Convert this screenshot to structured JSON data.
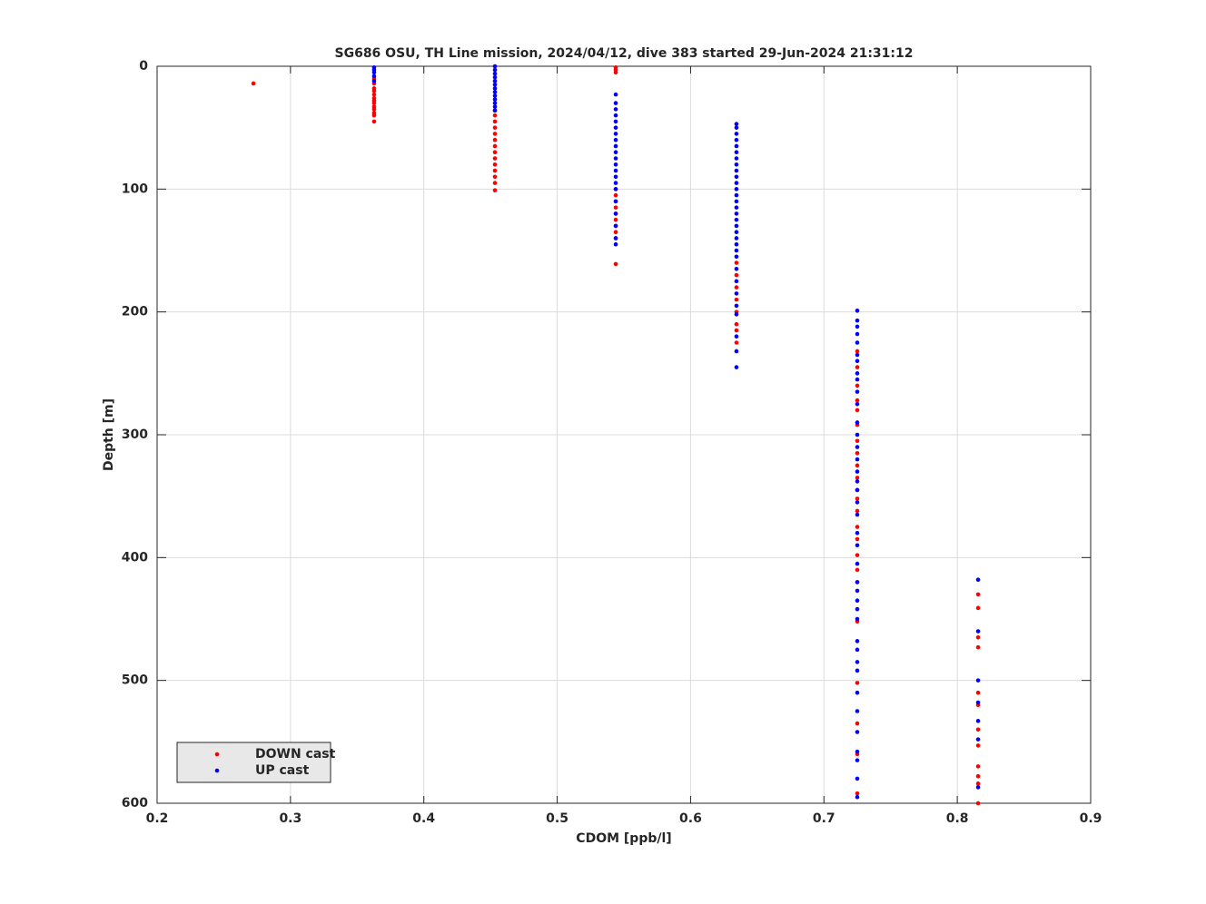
{
  "chart_data": {
    "type": "scatter",
    "title": "SG686 OSU, TH Line mission, 2024/04/12, dive 383 started 29-Jun-2024 21:31:12",
    "x_label": "CDOM [ppb/l]",
    "y_label": "Depth [m]",
    "xlim": [
      0.2,
      0.9
    ],
    "xticks": [
      0.2,
      0.3,
      0.4,
      0.5,
      0.6,
      0.7,
      0.8,
      0.9
    ],
    "ylim": [
      0,
      600
    ],
    "yticks": [
      0,
      100,
      200,
      300,
      400,
      500,
      600
    ],
    "y_reversed": true,
    "grid": true,
    "legend": "lower left",
    "series": [
      {
        "name": "DOWN cast",
        "color": "#ff0000",
        "x": [
          0.2722,
          0.3627,
          0.3627,
          0.3627,
          0.3627,
          0.3627,
          0.3627,
          0.3627,
          0.3627,
          0.3627,
          0.3627,
          0.3627,
          0.3627,
          0.3627,
          0.4533,
          0.4533,
          0.4533,
          0.4533,
          0.4533,
          0.4533,
          0.4533,
          0.4533,
          0.4533,
          0.4533,
          0.4533,
          0.4533,
          0.4533,
          0.4533,
          0.5439,
          0.5439,
          0.5439,
          0.5439,
          0.5439,
          0.5439,
          0.5439,
          0.5439,
          0.5439,
          0.5439,
          0.5439,
          0.5439,
          0.5439,
          0.6344,
          0.6344,
          0.6344,
          0.6344,
          0.6344,
          0.6344,
          0.6344,
          0.6344,
          0.725,
          0.725,
          0.725,
          0.725,
          0.725,
          0.725,
          0.725,
          0.725,
          0.725,
          0.725,
          0.725,
          0.725,
          0.725,
          0.725,
          0.725,
          0.725,
          0.725,
          0.725,
          0.725,
          0.725,
          0.725,
          0.725,
          0.725,
          0.8156,
          0.8156,
          0.8156,
          0.8156,
          0.8156,
          0.8156,
          0.8156,
          0.8156,
          0.8156,
          0.8156,
          0.8156,
          0.8156
        ],
        "values": [
          14,
          10,
          14,
          18,
          20,
          23,
          26,
          28,
          30,
          33,
          35,
          38,
          40,
          45,
          36,
          40,
          45,
          50,
          55,
          60,
          65,
          70,
          75,
          80,
          85,
          90,
          95,
          101,
          1,
          3,
          5,
          100,
          105,
          110,
          115,
          120,
          125,
          130,
          135,
          140,
          161,
          160,
          170,
          180,
          190,
          200,
          210,
          215,
          225,
          232,
          245,
          260,
          272,
          280,
          292,
          305,
          315,
          325,
          335,
          345,
          352,
          362,
          375,
          385,
          398,
          410,
          420,
          452,
          502,
          535,
          560,
          592,
          430,
          441,
          465,
          473,
          510,
          520,
          540,
          553,
          570,
          578,
          584,
          600
        ]
      },
      {
        "name": "UP cast",
        "color": "#0000ff",
        "x": [
          0.3627,
          0.3627,
          0.3627,
          0.3627,
          0.3627,
          0.4533,
          0.4533,
          0.4533,
          0.4533,
          0.4533,
          0.4533,
          0.4533,
          0.4533,
          0.4533,
          0.4533,
          0.4533,
          0.4533,
          0.4533,
          0.5439,
          0.5439,
          0.5439,
          0.5439,
          0.5439,
          0.5439,
          0.5439,
          0.5439,
          0.5439,
          0.5439,
          0.5439,
          0.5439,
          0.5439,
          0.5439,
          0.5439,
          0.5439,
          0.5439,
          0.5439,
          0.5439,
          0.5439,
          0.5439,
          0.6344,
          0.6344,
          0.6344,
          0.6344,
          0.6344,
          0.6344,
          0.6344,
          0.6344,
          0.6344,
          0.6344,
          0.6344,
          0.6344,
          0.6344,
          0.6344,
          0.6344,
          0.6344,
          0.6344,
          0.6344,
          0.6344,
          0.6344,
          0.6344,
          0.6344,
          0.6344,
          0.6344,
          0.6344,
          0.6344,
          0.6344,
          0.6344,
          0.6344,
          0.6344,
          0.6344,
          0.725,
          0.725,
          0.725,
          0.725,
          0.725,
          0.725,
          0.725,
          0.725,
          0.725,
          0.725,
          0.725,
          0.725,
          0.725,
          0.725,
          0.725,
          0.725,
          0.725,
          0.725,
          0.725,
          0.725,
          0.725,
          0.725,
          0.725,
          0.725,
          0.725,
          0.725,
          0.725,
          0.725,
          0.725,
          0.725,
          0.725,
          0.725,
          0.725,
          0.725,
          0.725,
          0.725,
          0.725,
          0.725,
          0.725,
          0.8156,
          0.8156,
          0.8156,
          0.8156,
          0.8156,
          0.8156,
          0.8156
        ],
        "values": [
          1,
          3,
          5,
          8,
          12,
          0,
          3,
          6,
          9,
          12,
          15,
          18,
          21,
          24,
          27,
          30,
          33,
          36,
          23,
          30,
          35,
          40,
          45,
          50,
          55,
          60,
          65,
          70,
          75,
          80,
          85,
          90,
          95,
          100,
          110,
          120,
          130,
          140,
          145,
          47,
          50,
          55,
          60,
          65,
          70,
          75,
          80,
          85,
          90,
          95,
          100,
          105,
          110,
          115,
          120,
          125,
          130,
          135,
          140,
          145,
          150,
          155,
          165,
          175,
          185,
          195,
          202,
          220,
          232,
          245,
          199,
          207,
          212,
          218,
          225,
          235,
          240,
          250,
          255,
          265,
          275,
          290,
          300,
          310,
          320,
          330,
          338,
          345,
          355,
          365,
          380,
          390,
          405,
          420,
          427,
          435,
          442,
          450,
          468,
          475,
          485,
          492,
          510,
          525,
          542,
          558,
          565,
          580,
          595,
          418,
          460,
          500,
          518,
          533,
          548,
          587
        ]
      }
    ]
  }
}
